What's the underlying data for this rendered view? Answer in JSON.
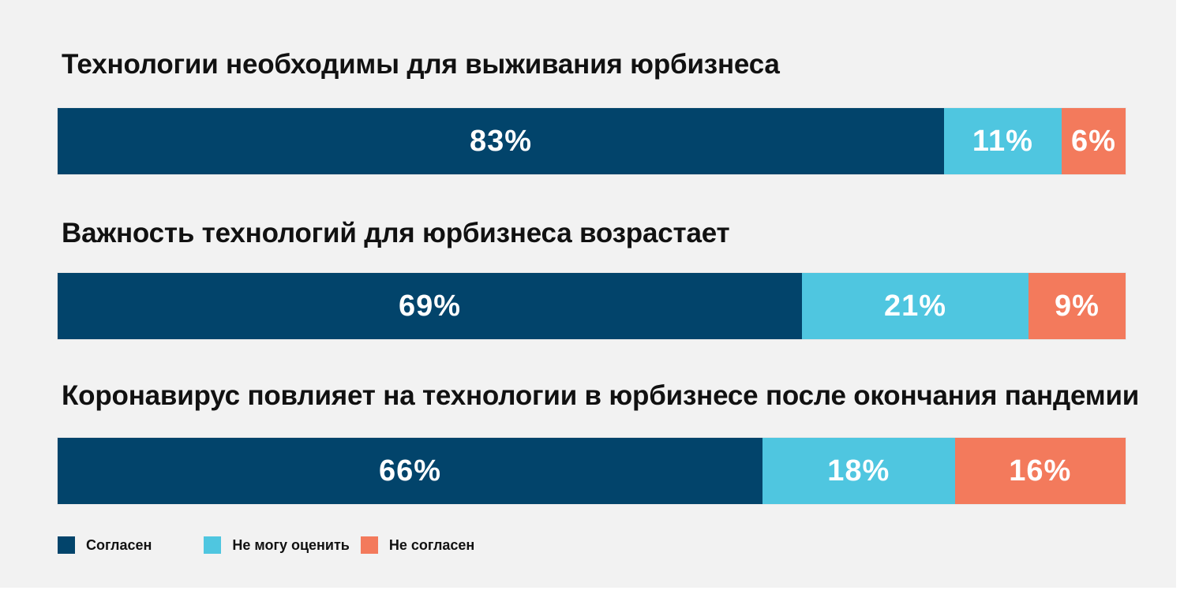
{
  "colors": {
    "agree": "#02446b",
    "unsure": "#4fc6e0",
    "disagree": "#f37a5c",
    "background": "#f2f2f2"
  },
  "legend": [
    {
      "label": "Согласен",
      "color": "#02446b"
    },
    {
      "label": "Не могу оценить",
      "color": "#4fc6e0"
    },
    {
      "label": "Не согласен",
      "color": "#f37a5c"
    }
  ],
  "chart_data": {
    "type": "bar",
    "orientation": "horizontal-stacked-100",
    "legend_placement": "bottom-left",
    "series": [
      {
        "name": "Согласен",
        "color": "#02446b"
      },
      {
        "name": "Не могу оценить",
        "color": "#4fc6e0"
      },
      {
        "name": "Не согласен",
        "color": "#f37a5c"
      }
    ],
    "rows": [
      {
        "title": "Технологии необходимы для выживания юрбизнеса",
        "values": [
          83,
          11,
          6
        ],
        "labels": [
          "83%",
          "11%",
          "6%"
        ]
      },
      {
        "title": "Важность технологий для юрбизнеса возрастает",
        "values": [
          69,
          21,
          9
        ],
        "labels": [
          "69%",
          "21%",
          "9%"
        ]
      },
      {
        "title": "Коронавирус повлияет на технологии в юрбизнесе после окончания пандемии",
        "values": [
          66,
          18,
          16
        ],
        "labels": [
          "66%",
          "18%",
          "16%"
        ]
      }
    ]
  }
}
